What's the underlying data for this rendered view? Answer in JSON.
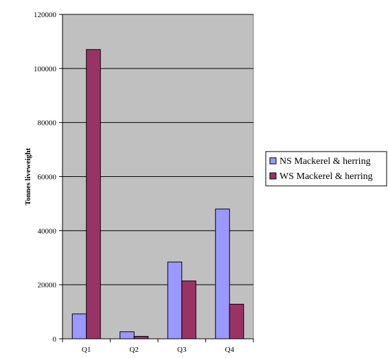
{
  "chart_data": {
    "type": "bar",
    "categories": [
      "Q1",
      "Q2",
      "Q3",
      "Q4"
    ],
    "series": [
      {
        "name": "NS Mackerel & herring",
        "color": "#9999ff",
        "values": [
          9200,
          2600,
          28400,
          48000
        ]
      },
      {
        "name": "WS Mackerel & herring",
        "color": "#993366",
        "values": [
          107000,
          900,
          21400,
          12800
        ]
      }
    ],
    "ylabel": "Tonnes liveweight",
    "ylim": [
      0,
      120000
    ],
    "yticks": [
      0,
      20000,
      40000,
      60000,
      80000,
      100000,
      120000
    ],
    "ytick_labels": [
      "0",
      "20000",
      "40000",
      "60000",
      "80000",
      "100000",
      "120000"
    ],
    "grid": true,
    "plot_background": "#c0c0c0",
    "legend_position": "right"
  }
}
